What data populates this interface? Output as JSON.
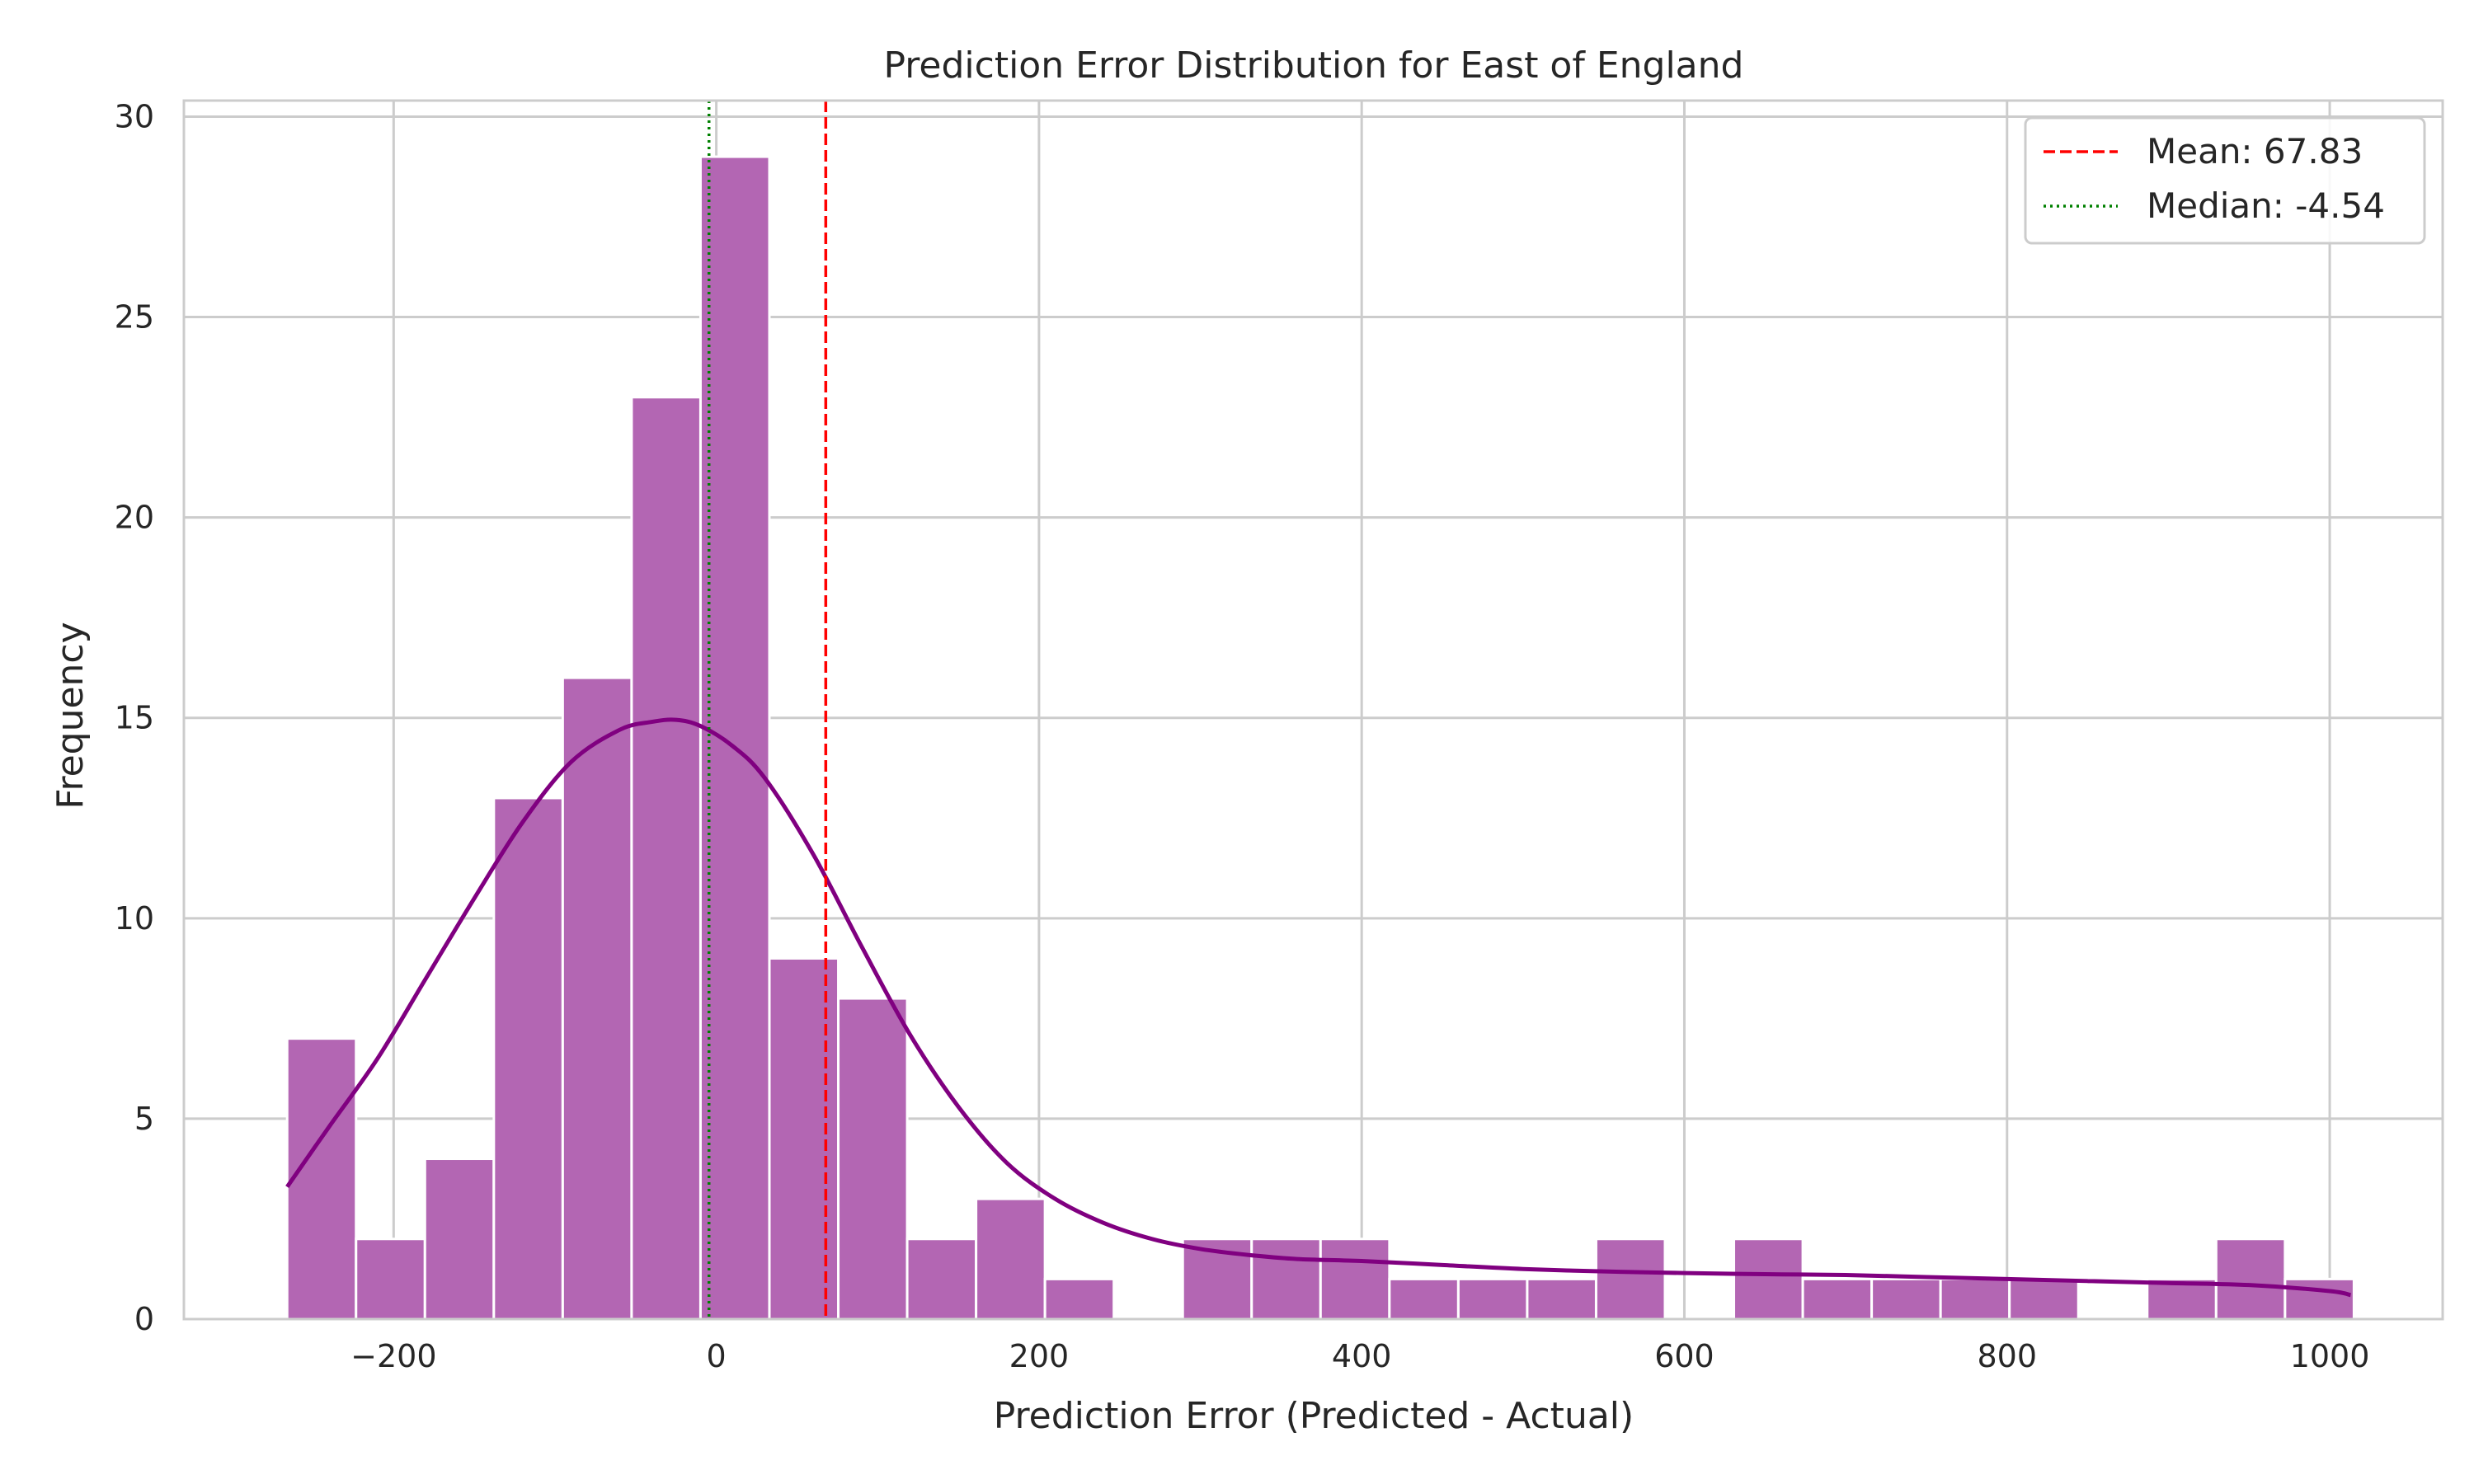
{
  "chart_data": {
    "type": "bar",
    "title": "Prediction Error Distribution for East of England",
    "xlabel": "Prediction Error (Predicted - Actual)",
    "ylabel": "Frequency",
    "xlim": [
      -330,
      1070
    ],
    "ylim": [
      0,
      30.4
    ],
    "xticks": [
      -200,
      0,
      200,
      400,
      600,
      800,
      1000
    ],
    "xtick_labels": [
      "−200",
      "0",
      "200",
      "400",
      "600",
      "800",
      "1000"
    ],
    "yticks": [
      0,
      5,
      10,
      15,
      20,
      25,
      30
    ],
    "ytick_labels": [
      "0",
      "5",
      "10",
      "15",
      "20",
      "25",
      "30"
    ],
    "grid": true,
    "bin_start": -266,
    "bin_width": 42.7,
    "counts": [
      7,
      2,
      4,
      13,
      16,
      23,
      29,
      9,
      8,
      2,
      3,
      1,
      0,
      2,
      2,
      2,
      1,
      1,
      1,
      2,
      0,
      2,
      1,
      1,
      1,
      1,
      0,
      1,
      2,
      1
    ],
    "bar_color": "#b366b3",
    "kde": {
      "color": "#800080",
      "x": [
        -266,
        -240,
        -210,
        -180,
        -150,
        -120,
        -90,
        -60,
        -40,
        -25,
        -10,
        10,
        30,
        60,
        90,
        120,
        150,
        180,
        210,
        240,
        270,
        300,
        330,
        360,
        400,
        450,
        500,
        560,
        600,
        650,
        700,
        750,
        800,
        850,
        900,
        950,
        1000,
        1013
      ],
      "y": [
        3.3,
        4.8,
        6.5,
        8.5,
        10.5,
        12.4,
        13.9,
        14.7,
        14.9,
        14.95,
        14.8,
        14.3,
        13.5,
        11.6,
        9.3,
        7.1,
        5.3,
        3.9,
        3.0,
        2.4,
        2.0,
        1.75,
        1.6,
        1.5,
        1.45,
        1.35,
        1.25,
        1.18,
        1.15,
        1.12,
        1.1,
        1.05,
        1.0,
        0.95,
        0.9,
        0.85,
        0.7,
        0.6
      ]
    },
    "mean": {
      "value": 67.83,
      "label": "Mean: 67.83",
      "color": "#ff0000"
    },
    "median": {
      "value": -4.54,
      "label": "Median: -4.54",
      "color": "#008000"
    },
    "legend_position": "top-right"
  }
}
